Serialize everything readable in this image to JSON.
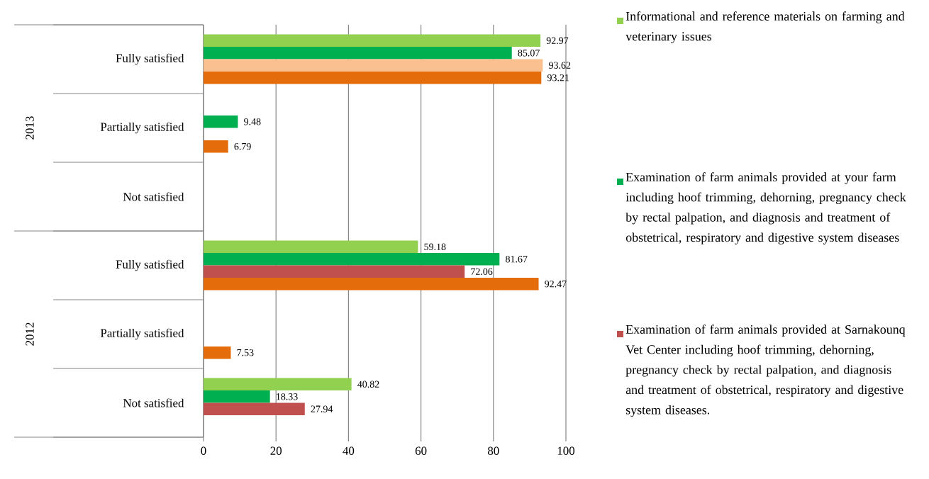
{
  "chart_data": {
    "type": "bar",
    "orientation": "horizontal",
    "categories": [
      "Fully satisfied",
      "Partially satisfied",
      "Not satisfied",
      "Fully satisfied",
      "Partially satisfied",
      "Not satisfied"
    ],
    "annotations": [
      "2013",
      "2012"
    ],
    "series": [
      {
        "name": "Informational and reference materials on farming and veterinary  issues",
        "color": "#92d050",
        "values": [
          92.97,
          null,
          null,
          59.18,
          null,
          40.82
        ]
      },
      {
        "name": "Examination of farm animals provided at your farm including hoof trimming, dehorning, pregnancy check by rectal palpation, and diagnosis and treatment of obstetrical, respiratory and digestive system diseases",
        "color": "#00b050",
        "values": [
          85.07,
          9.48,
          null,
          81.67,
          null,
          18.33
        ]
      },
      {
        "name": "Examination of farm animals provided at Sarnakounq Vet Center including hoof trimming, dehorning, pregnancy check by rectal palpation, and diagnosis and treatment of obstetrical, respiratory and digestive system diseases.",
        "color": "#c0504d",
        "colors": [
          "#fac090",
          "#c0504d",
          "#c0504d",
          "#c0504d",
          "#c0504d",
          "#c0504d"
        ],
        "values": [
          93.62,
          null,
          null,
          72.06,
          null,
          27.94
        ]
      },
      {
        "color": "#e46c0a",
        "values": [
          93.21,
          6.79,
          null,
          92.47,
          7.53,
          null
        ]
      }
    ],
    "xlim": [
      0,
      100
    ],
    "xticks": [
      0,
      20,
      40,
      60,
      80,
      100
    ],
    "grid": "x",
    "data_labels": true,
    "legend": "right"
  }
}
